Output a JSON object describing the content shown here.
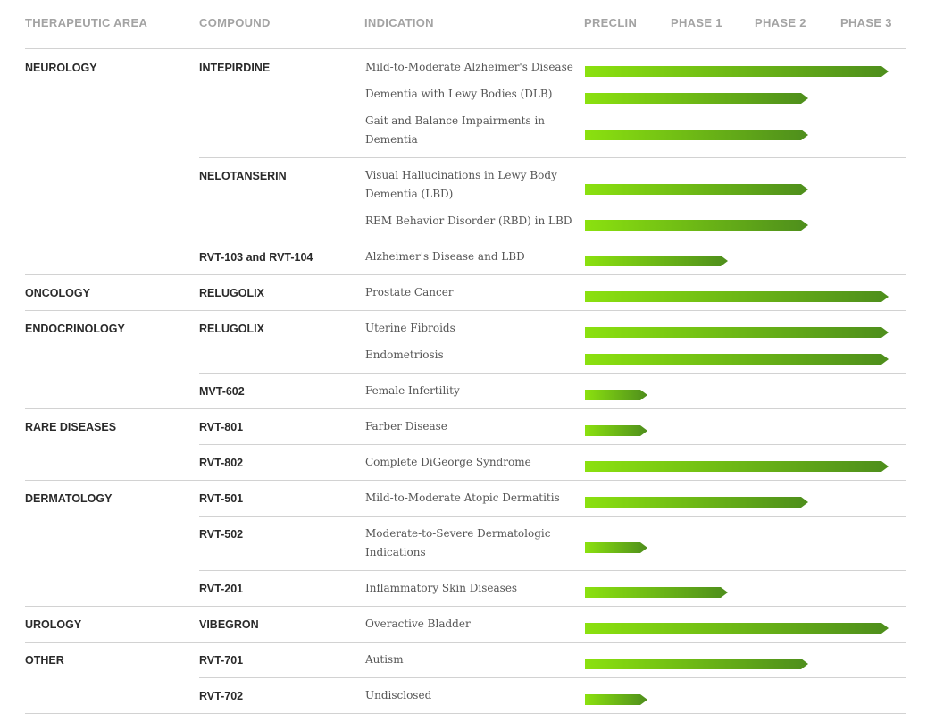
{
  "headers": {
    "area": "THERAPEUTIC AREA",
    "compound": "COMPOUND",
    "indication": "INDICATION",
    "phases": [
      "PRECLIN",
      "PHASE 1",
      "PHASE 2",
      "PHASE 3"
    ]
  },
  "colors": {
    "bar_start": "#8be10f",
    "bar_end": "#4e8e1c"
  },
  "chart_data": {
    "type": "bar",
    "orientation": "horizontal",
    "stages": [
      "PRECLIN",
      "PHASE 1",
      "PHASE 2",
      "PHASE 3"
    ],
    "rows": [
      {
        "area": "NEUROLOGY",
        "compound": "INTEPIRDINE",
        "indication": "Mild-to-Moderate Alzheimer's Disease",
        "stage": 4
      },
      {
        "area": "",
        "compound": "",
        "indication": "Dementia with Lewy Bodies (DLB)",
        "stage": 3
      },
      {
        "area": "",
        "compound": "",
        "indication": "Gait and Balance Impairments in Dementia",
        "stage": 3
      },
      {
        "area": "",
        "compound": "NELOTANSERIN",
        "indication": "Visual Hallucinations in Lewy Body Dementia (LBD)",
        "stage": 3
      },
      {
        "area": "",
        "compound": "",
        "indication": "REM Behavior Disorder (RBD) in LBD",
        "stage": 3
      },
      {
        "area": "",
        "compound": "RVT-103 and RVT-104",
        "indication": "Alzheimer's Disease and LBD",
        "stage": 2
      },
      {
        "area": "ONCOLOGY",
        "compound": "RELUGOLIX",
        "indication": "Prostate Cancer",
        "stage": 4
      },
      {
        "area": "ENDOCRINOLOGY",
        "compound": "RELUGOLIX",
        "indication": "Uterine Fibroids",
        "stage": 4
      },
      {
        "area": "",
        "compound": "",
        "indication": "Endometriosis",
        "stage": 4
      },
      {
        "area": "",
        "compound": "MVT-602",
        "indication": "Female Infertility",
        "stage": 1
      },
      {
        "area": "RARE DISEASES",
        "compound": "RVT-801",
        "indication": "Farber Disease",
        "stage": 1
      },
      {
        "area": "",
        "compound": "RVT-802",
        "indication": "Complete DiGeorge Syndrome",
        "stage": 4
      },
      {
        "area": "DERMATOLOGY",
        "compound": "RVT-501",
        "indication": "Mild-to-Moderate Atopic Dermatitis",
        "stage": 3
      },
      {
        "area": "",
        "compound": "RVT-502",
        "indication": "Moderate-to-Severe Dermatologic Indications",
        "stage": 1
      },
      {
        "area": "",
        "compound": "RVT-201",
        "indication": "Inflammatory Skin Diseases",
        "stage": 2
      },
      {
        "area": "UROLOGY",
        "compound": "VIBEGRON",
        "indication": "Overactive Bladder",
        "stage": 4
      },
      {
        "area": "OTHER",
        "compound": "RVT-701",
        "indication": "Autism",
        "stage": 3
      },
      {
        "area": "",
        "compound": "RVT-702",
        "indication": "Undisclosed",
        "stage": 1
      }
    ]
  }
}
